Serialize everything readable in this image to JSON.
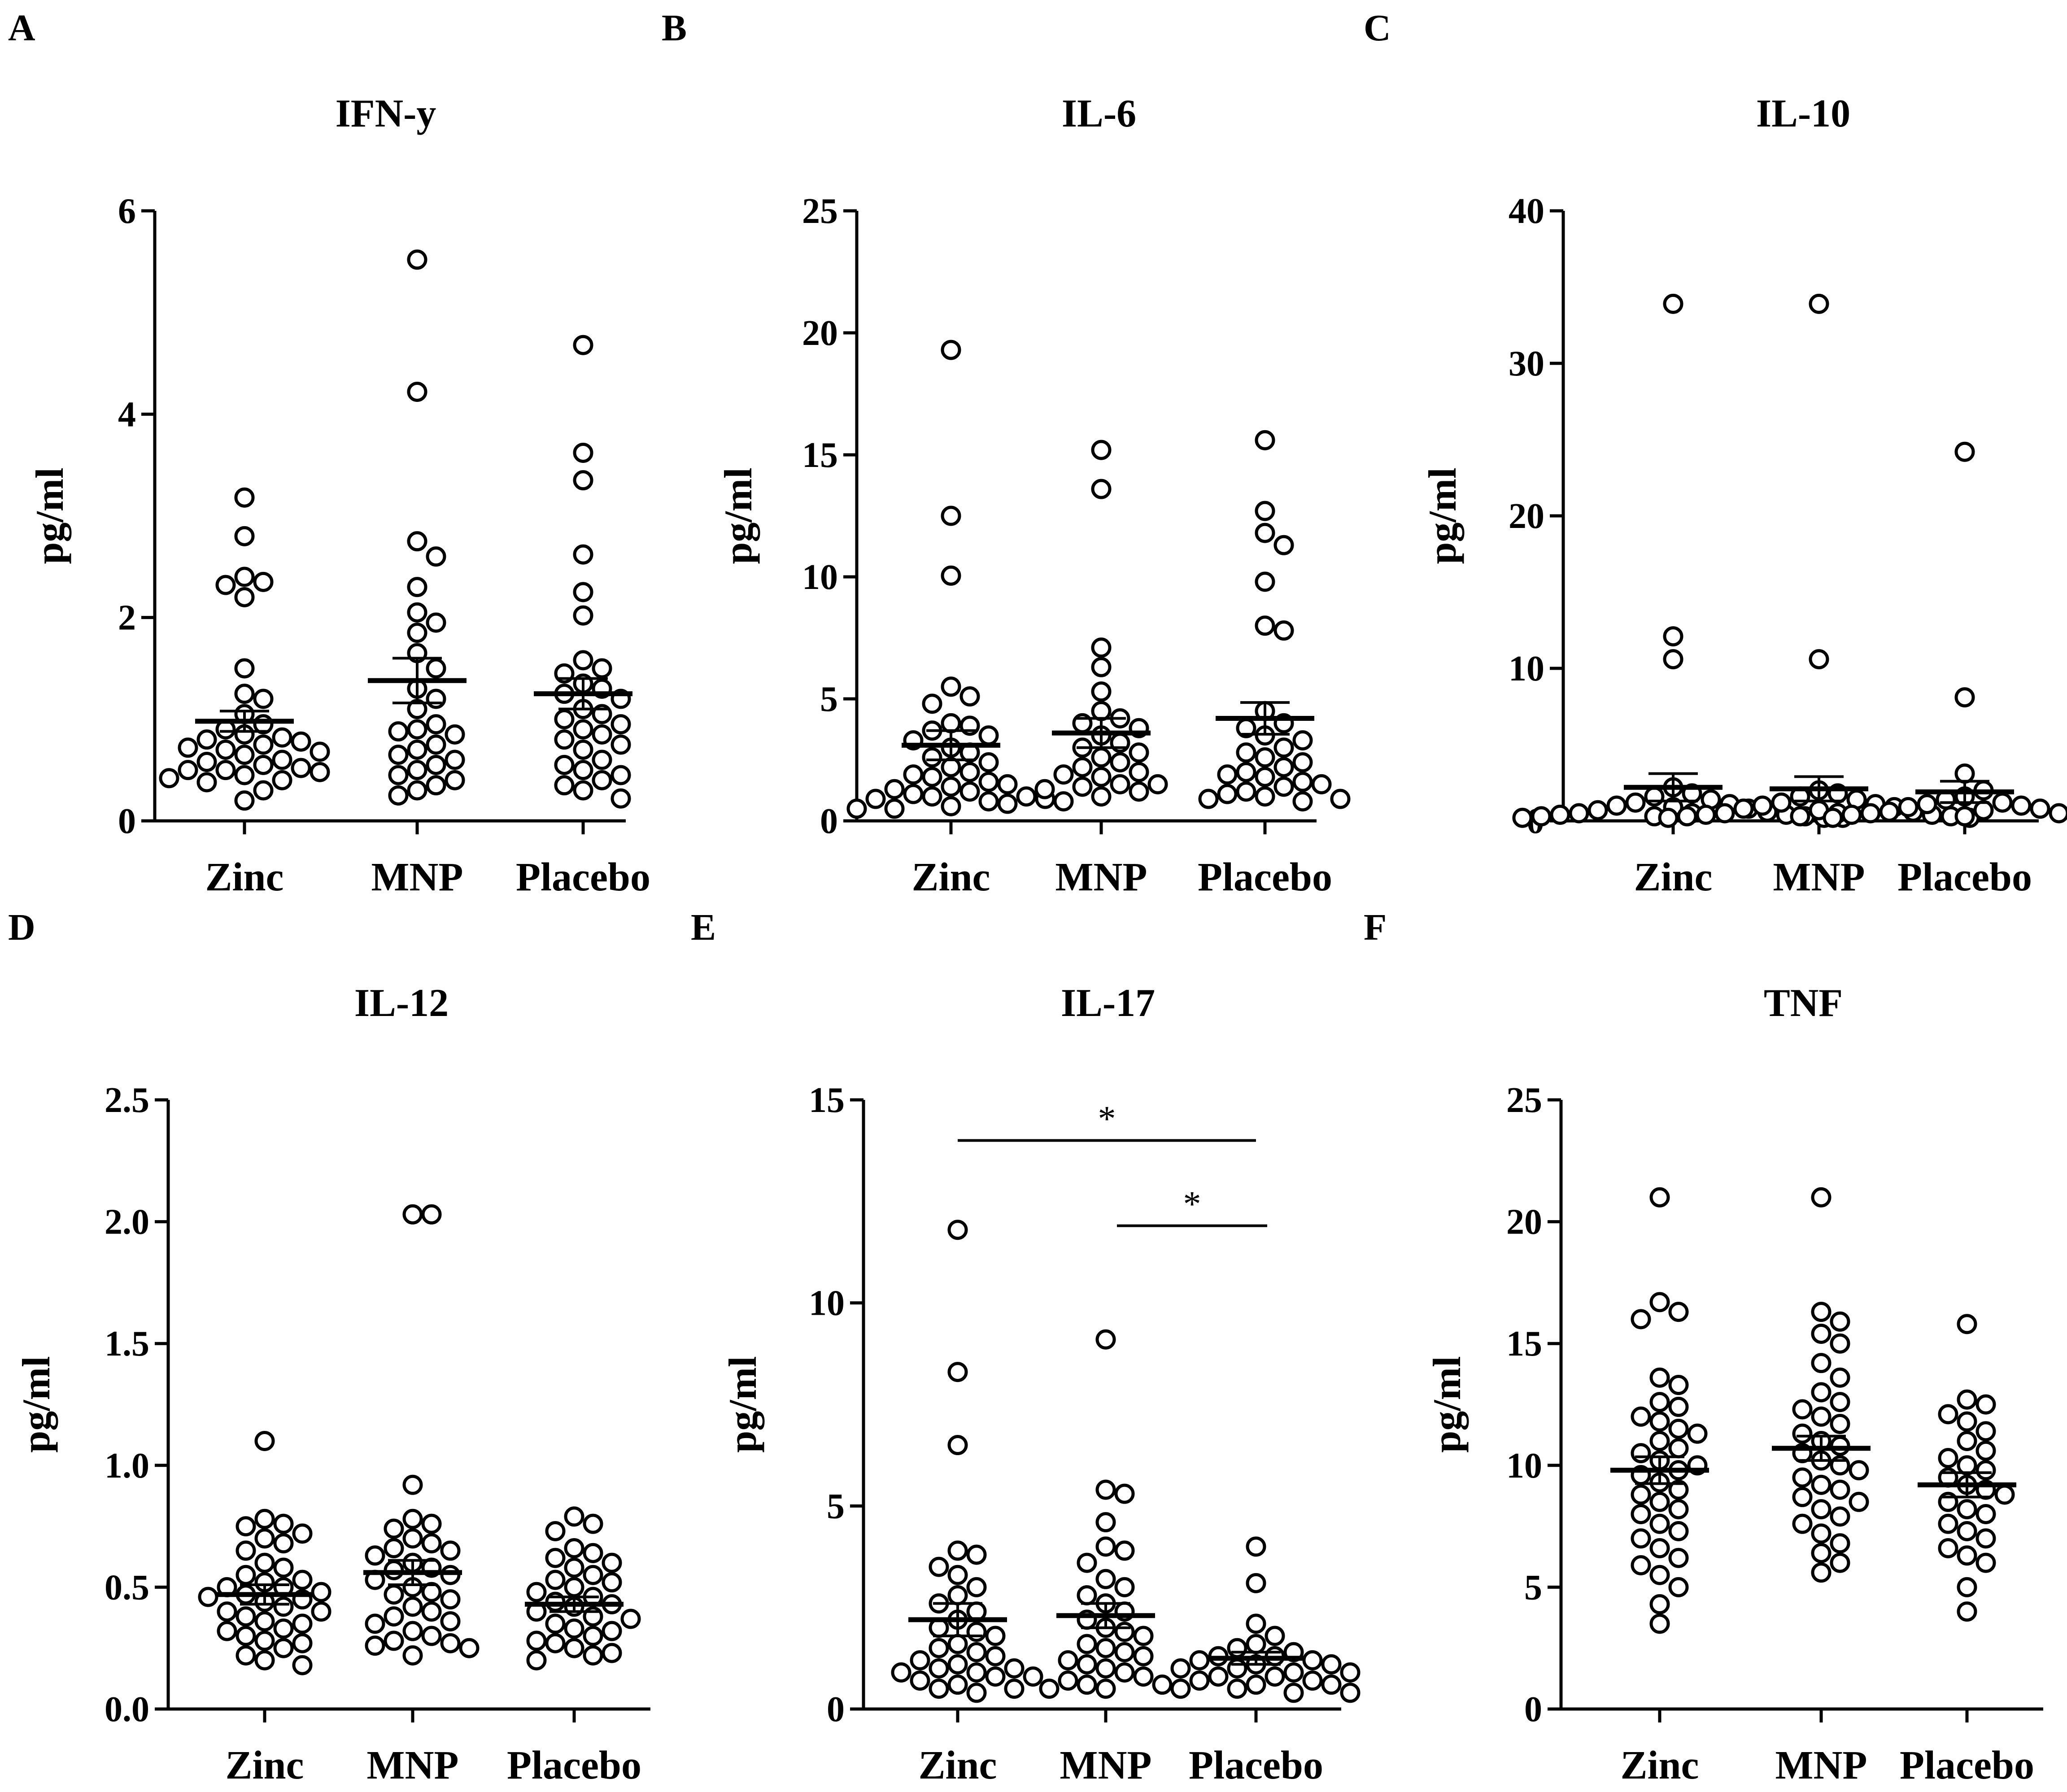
{
  "chart_data": [
    {
      "panel": "A",
      "title": "IFN-y",
      "type": "scatter",
      "ylabel": "pg/ml",
      "ylim": [
        0,
        6
      ],
      "yticks": [
        "0",
        "2",
        "4",
        "6"
      ],
      "ytick_values": [
        0,
        2,
        4,
        6
      ],
      "categories": [
        "Zinc",
        "MNP",
        "Placebo"
      ],
      "groups": [
        {
          "name": "Zinc",
          "mean": 0.98,
          "sem": 0.1,
          "values": [
            3.18,
            2.8,
            2.4,
            2.35,
            2.32,
            2.2,
            1.5,
            1.25,
            1.2,
            1.05,
            0.95,
            0.9,
            0.85,
            0.82,
            0.8,
            0.78,
            0.75,
            0.72,
            0.7,
            0.68,
            0.65,
            0.6,
            0.58,
            0.55,
            0.52,
            0.5,
            0.5,
            0.48,
            0.45,
            0.42,
            0.4,
            0.38,
            0.3,
            0.2
          ]
        },
        {
          "name": "MNP",
          "mean": 1.38,
          "sem": 0.22,
          "values": [
            5.52,
            4.22,
            2.75,
            2.6,
            2.3,
            2.05,
            1.95,
            1.85,
            1.65,
            1.5,
            1.3,
            1.2,
            1.1,
            0.95,
            0.9,
            0.88,
            0.85,
            0.75,
            0.7,
            0.65,
            0.6,
            0.55,
            0.5,
            0.45,
            0.4,
            0.35,
            0.3,
            0.25
          ]
        },
        {
          "name": "Placebo",
          "mean": 1.25,
          "sem": 0.15,
          "values": [
            4.68,
            3.62,
            3.35,
            2.62,
            2.25,
            2.02,
            1.58,
            1.5,
            1.45,
            1.35,
            1.3,
            1.25,
            1.2,
            1.1,
            1.05,
            1.0,
            0.95,
            0.9,
            0.85,
            0.8,
            0.75,
            0.7,
            0.6,
            0.55,
            0.5,
            0.45,
            0.4,
            0.35,
            0.3,
            0.22
          ]
        }
      ]
    },
    {
      "panel": "B",
      "title": "IL-6",
      "type": "scatter",
      "ylabel": "pg/ml",
      "ylim": [
        0,
        25
      ],
      "yticks": [
        "0",
        "5",
        "10",
        "15",
        "20",
        "25"
      ],
      "ytick_values": [
        0,
        5,
        10,
        15,
        20,
        25
      ],
      "categories": [
        "Zinc",
        "MNP",
        "Placebo"
      ],
      "groups": [
        {
          "name": "Zinc",
          "mean": 3.1,
          "sem": 0.6,
          "values": [
            19.3,
            12.5,
            10.05,
            5.5,
            5.1,
            4.8,
            4.0,
            3.9,
            3.7,
            3.5,
            3.3,
            3.0,
            2.8,
            2.6,
            2.4,
            2.2,
            2.0,
            1.9,
            1.8,
            1.6,
            1.5,
            1.4,
            1.3,
            1.2,
            1.1,
            1.0,
            1.0,
            0.9,
            0.9,
            0.8,
            0.7,
            0.6,
            0.5,
            0.5
          ]
        },
        {
          "name": "MNP",
          "mean": 3.6,
          "sem": 0.6,
          "values": [
            15.2,
            13.6,
            7.1,
            6.3,
            5.3,
            4.5,
            4.2,
            4.0,
            3.8,
            3.5,
            3.2,
            3.0,
            2.8,
            2.6,
            2.4,
            2.2,
            2.0,
            1.9,
            1.8,
            1.5,
            1.5,
            1.4,
            1.3,
            1.2,
            1.0,
            0.8
          ]
        },
        {
          "name": "Placebo",
          "mean": 4.2,
          "sem": 0.65,
          "values": [
            15.6,
            12.7,
            11.8,
            11.3,
            9.8,
            8.0,
            7.8,
            4.5,
            4.0,
            3.8,
            3.5,
            3.3,
            3.0,
            2.8,
            2.6,
            2.4,
            2.2,
            2.0,
            1.9,
            1.8,
            1.6,
            1.5,
            1.4,
            1.2,
            1.1,
            1.0,
            0.9,
            0.9,
            0.8
          ]
        }
      ]
    },
    {
      "panel": "C",
      "title": "IL-10",
      "type": "scatter",
      "ylabel": "pg/ml",
      "ylim": [
        0,
        40
      ],
      "yticks": [
        "0",
        "10",
        "20",
        "30",
        "40"
      ],
      "ytick_values": [
        0,
        10,
        20,
        30,
        40
      ],
      "categories": [
        "Zinc",
        "MNP",
        "Placebo"
      ],
      "groups": [
        {
          "name": "Zinc",
          "mean": 2.2,
          "sem": 0.9,
          "values": [
            33.9,
            12.1,
            10.6,
            2.2,
            1.8,
            1.6,
            1.4,
            1.2,
            1.1,
            1.0,
            0.9,
            0.8,
            0.7,
            0.6,
            0.5,
            0.5,
            0.4,
            0.4,
            0.3,
            0.3,
            0.3,
            0.2,
            0.2,
            0.2
          ]
        },
        {
          "name": "MNP",
          "mean": 2.1,
          "sem": 0.8,
          "values": [
            33.9,
            10.6,
            2.0,
            1.8,
            1.6,
            1.4,
            1.2,
            1.1,
            1.0,
            0.9,
            0.8,
            0.7,
            0.6,
            0.5,
            0.5,
            0.4,
            0.4,
            0.3,
            0.3,
            0.3,
            0.2,
            0.2
          ]
        },
        {
          "name": "Placebo",
          "mean": 1.9,
          "sem": 0.7,
          "values": [
            24.2,
            8.1,
            3.1,
            2.0,
            1.6,
            1.4,
            1.2,
            1.1,
            1.0,
            0.9,
            0.8,
            0.7,
            0.6,
            0.5,
            0.5,
            0.4,
            0.4,
            0.3,
            0.3,
            0.2,
            0.2
          ]
        }
      ]
    },
    {
      "panel": "D",
      "title": "IL-12",
      "type": "scatter",
      "ylabel": "pg/ml",
      "ylim": [
        0,
        2.5
      ],
      "yticks": [
        "0.0",
        "0.5",
        "1.0",
        "1.5",
        "2.0",
        "2.5"
      ],
      "ytick_values": [
        0,
        0.5,
        1.0,
        1.5,
        2.0,
        2.5
      ],
      "categories": [
        "Zinc",
        "MNP",
        "Placebo"
      ],
      "groups": [
        {
          "name": "Zinc",
          "mean": 0.47,
          "sem": 0.04,
          "values": [
            1.1,
            0.78,
            0.76,
            0.75,
            0.72,
            0.7,
            0.68,
            0.65,
            0.6,
            0.58,
            0.55,
            0.53,
            0.52,
            0.5,
            0.5,
            0.48,
            0.47,
            0.46,
            0.45,
            0.44,
            0.42,
            0.4,
            0.4,
            0.38,
            0.36,
            0.35,
            0.33,
            0.32,
            0.3,
            0.28,
            0.27,
            0.25,
            0.22,
            0.2,
            0.18
          ]
        },
        {
          "name": "MNP",
          "mean": 0.56,
          "sem": 0.05,
          "values": [
            2.03,
            2.03,
            0.92,
            0.78,
            0.76,
            0.74,
            0.7,
            0.68,
            0.66,
            0.65,
            0.63,
            0.6,
            0.58,
            0.57,
            0.55,
            0.53,
            0.5,
            0.48,
            0.47,
            0.45,
            0.42,
            0.4,
            0.38,
            0.36,
            0.35,
            0.32,
            0.3,
            0.28,
            0.27,
            0.26,
            0.25,
            0.22
          ]
        },
        {
          "name": "Placebo",
          "mean": 0.43,
          "sem": 0.03,
          "values": [
            0.79,
            0.76,
            0.73,
            0.66,
            0.64,
            0.62,
            0.6,
            0.58,
            0.55,
            0.53,
            0.52,
            0.5,
            0.48,
            0.46,
            0.44,
            0.43,
            0.42,
            0.4,
            0.38,
            0.37,
            0.35,
            0.33,
            0.32,
            0.3,
            0.28,
            0.27,
            0.25,
            0.23,
            0.22,
            0.2
          ]
        }
      ]
    },
    {
      "panel": "E",
      "title": "IL-17",
      "type": "scatter",
      "ylabel": "pg/ml",
      "ylim": [
        0,
        15
      ],
      "yticks": [
        "0",
        "5",
        "10",
        "15"
      ],
      "ytick_values": [
        0,
        5,
        10,
        15
      ],
      "categories": [
        "Zinc",
        "MNP",
        "Placebo"
      ],
      "significance": [
        {
          "from": "Zinc",
          "to": "Placebo",
          "y": 14.0,
          "label": "*"
        },
        {
          "from": "MNP",
          "to": "Placebo",
          "y": 11.9,
          "label": "*"
        }
      ],
      "groups": [
        {
          "name": "Zinc",
          "mean": 2.2,
          "sem": 0.4,
          "values": [
            11.8,
            8.3,
            6.5,
            3.9,
            3.8,
            3.5,
            3.3,
            3.0,
            2.8,
            2.6,
            2.4,
            2.2,
            2.0,
            1.9,
            1.8,
            1.6,
            1.5,
            1.4,
            1.3,
            1.2,
            1.1,
            1.0,
            1.0,
            0.9,
            0.9,
            0.8,
            0.8,
            0.7,
            0.6,
            0.5,
            0.5,
            0.4
          ]
        },
        {
          "name": "MNP",
          "mean": 2.3,
          "sem": 0.3,
          "values": [
            9.1,
            5.4,
            5.3,
            4.6,
            4.0,
            3.9,
            3.6,
            3.2,
            3.0,
            2.8,
            2.6,
            2.4,
            2.2,
            2.0,
            1.9,
            1.8,
            1.6,
            1.5,
            1.4,
            1.3,
            1.2,
            1.1,
            1.0,
            0.9,
            0.8,
            0.7,
            0.6,
            0.6,
            0.5,
            0.5
          ]
        },
        {
          "name": "Placebo",
          "mean": 1.25,
          "sem": 0.15,
          "values": [
            4.0,
            3.1,
            2.1,
            1.8,
            1.6,
            1.5,
            1.4,
            1.3,
            1.3,
            1.2,
            1.2,
            1.1,
            1.1,
            1.0,
            1.0,
            0.9,
            0.9,
            0.8,
            0.8,
            0.7,
            0.7,
            0.6,
            0.6,
            0.5,
            0.5,
            0.4,
            0.4
          ]
        }
      ]
    },
    {
      "panel": "F",
      "title": "TNF",
      "type": "scatter",
      "ylabel": "pg/ml",
      "ylim": [
        0,
        25
      ],
      "yticks": [
        "0",
        "5",
        "10",
        "15",
        "20",
        "25"
      ],
      "ytick_values": [
        0,
        5,
        10,
        15,
        20,
        25
      ],
      "categories": [
        "Zinc",
        "MNP",
        "Placebo"
      ],
      "groups": [
        {
          "name": "Zinc",
          "mean": 9.8,
          "sem": 0.55,
          "values": [
            21.0,
            16.7,
            16.3,
            16.0,
            13.6,
            13.3,
            12.6,
            12.4,
            12.0,
            11.8,
            11.5,
            11.3,
            11.0,
            10.7,
            10.5,
            10.2,
            10.0,
            9.8,
            9.6,
            9.3,
            9.0,
            8.8,
            8.5,
            8.2,
            8.0,
            7.6,
            7.3,
            7.0,
            6.6,
            6.2,
            5.9,
            5.5,
            5.0,
            4.3,
            3.5
          ]
        },
        {
          "name": "MNP",
          "mean": 10.7,
          "sem": 0.5,
          "values": [
            21.0,
            16.3,
            15.9,
            15.4,
            15.0,
            14.2,
            13.6,
            13.0,
            12.6,
            12.3,
            12.0,
            11.7,
            11.3,
            11.0,
            10.8,
            10.5,
            10.2,
            10.0,
            9.8,
            9.5,
            9.2,
            9.0,
            8.7,
            8.5,
            8.2,
            7.9,
            7.6,
            7.2,
            6.8,
            6.4,
            6.0,
            5.6
          ]
        },
        {
          "name": "Placebo",
          "mean": 9.2,
          "sem": 0.5,
          "values": [
            15.8,
            12.7,
            12.5,
            12.1,
            11.8,
            11.4,
            11.0,
            10.6,
            10.3,
            10.0,
            9.8,
            9.5,
            9.2,
            9.0,
            8.8,
            8.5,
            8.2,
            8.0,
            7.6,
            7.3,
            7.0,
            6.6,
            6.3,
            6.0,
            5.0,
            4.0
          ]
        }
      ]
    }
  ]
}
